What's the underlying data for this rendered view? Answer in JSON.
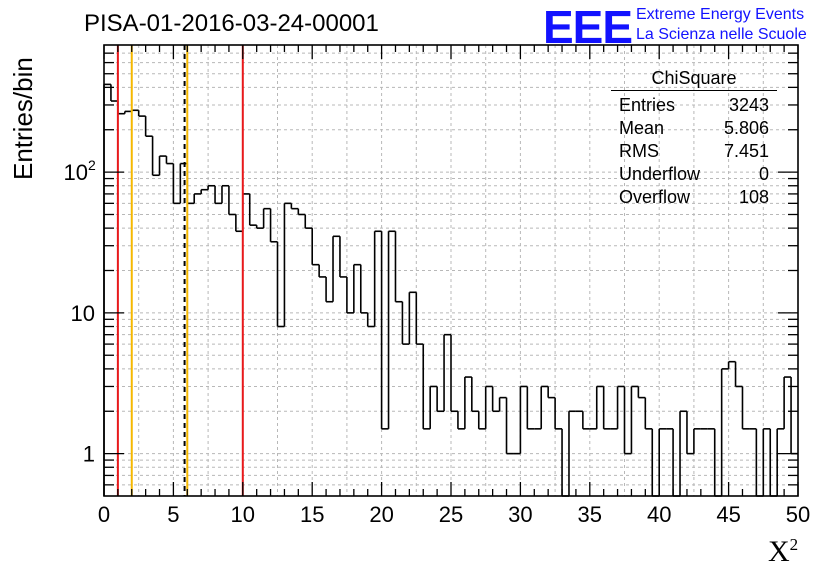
{
  "chart_data": {
    "type": "step-histogram",
    "title": "PISA-01-2016-03-24-00001",
    "xlabel_base": "X",
    "xlabel_sup": "2",
    "ylabel": "Entries/bin",
    "xlim": [
      0,
      50
    ],
    "ylim": [
      0.5,
      800
    ],
    "yscale": "log",
    "grid": true,
    "bin_width": 0.5,
    "bin_contents": [
      420,
      320,
      260,
      270,
      275,
      250,
      180,
      95,
      130,
      115,
      60,
      115,
      60,
      70,
      75,
      80,
      60,
      80,
      50,
      38,
      70,
      42,
      40,
      55,
      32,
      8,
      60,
      55,
      50,
      40,
      22,
      18,
      12,
      35,
      18,
      10,
      22,
      10,
      8,
      38,
      1.5,
      38,
      12,
      6,
      14,
      6,
      1.5,
      3,
      2,
      7,
      2,
      1.5,
      3.5,
      2,
      1.5,
      3,
      2,
      2.5,
      1,
      1,
      3,
      1.5,
      1.5,
      3,
      2.5,
      1.5,
      0.5,
      2,
      2,
      1.5,
      1.5,
      3,
      1.5,
      1.5,
      3,
      1,
      3,
      2.5,
      1.5,
      0.5,
      1.5,
      1.5,
      0.5,
      2,
      1,
      1.5,
      1.5,
      1.5,
      0.5,
      4,
      4.5,
      3,
      1.5,
      1.5,
      0.5,
      1.5,
      0.5,
      1.5,
      3.5,
      1
    ],
    "vertical_lines": [
      {
        "x": 1,
        "color": "#e8191b",
        "style": "solid"
      },
      {
        "x": 2,
        "color": "#f5b800",
        "style": "solid"
      },
      {
        "x": 5.806,
        "color": "#000000",
        "style": "dashed"
      },
      {
        "x": 6,
        "color": "#f5b800",
        "style": "solid"
      },
      {
        "x": 10,
        "color": "#e8191b",
        "style": "solid"
      }
    ],
    "x_ticks": [
      "0",
      "5",
      "10",
      "15",
      "20",
      "25",
      "30",
      "35",
      "40",
      "45",
      "50"
    ],
    "y_ticks": [
      {
        "value": 1,
        "label": "1"
      },
      {
        "value": 10,
        "label": "10"
      },
      {
        "value": 100,
        "label": "10",
        "exp": "2"
      }
    ]
  },
  "logo": {
    "mark": "EEE",
    "line1": "Extreme Energy Events",
    "line2": "La Scienza nelle Scuole",
    "color": "#1212ff"
  },
  "stats": {
    "title": "ChiSquare",
    "rows": [
      {
        "label": "Entries",
        "value": "3243"
      },
      {
        "label": "Mean",
        "value": "5.806"
      },
      {
        "label": "RMS",
        "value": "7.451"
      },
      {
        "label": "Underflow",
        "value": "0"
      },
      {
        "label": "Overflow",
        "value": "108"
      }
    ]
  }
}
